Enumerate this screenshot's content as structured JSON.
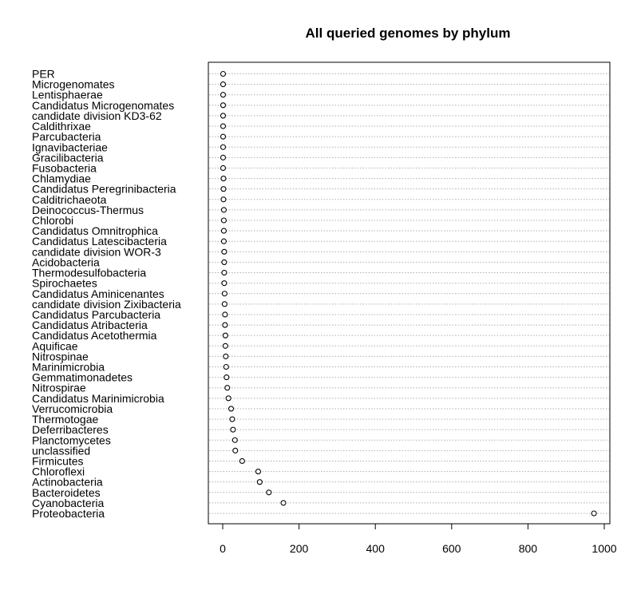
{
  "chart_data": {
    "type": "dot",
    "title": "All queried genomes by phylum",
    "xlabel": "",
    "ylabel": "",
    "xlim": [
      -40,
      1010
    ],
    "xticks": [
      0,
      200,
      400,
      600,
      800,
      1000
    ],
    "grid": "horizontal dotted",
    "categories": [
      "PER",
      "Microgenomates",
      "Lentisphaerae",
      "Candidatus Microgenomates",
      "candidate division KD3-62",
      "Caldithrixae",
      "Parcubacteria",
      "Ignavibacteriae",
      "Gracilibacteria",
      "Fusobacteria",
      "Chlamydiae",
      "Candidatus Peregrinibacteria",
      "Calditrichaeota",
      "Deinococcus-Thermus",
      "Chlorobi",
      "Candidatus Omnitrophica",
      "Candidatus Latescibacteria",
      "candidate division WOR-3",
      "Acidobacteria",
      "Thermodesulfobacteria",
      "Spirochaetes",
      "Candidatus Aminicenantes",
      "candidate division Zixibacteria",
      "Candidatus Parcubacteria",
      "Candidatus Atribacteria",
      "Candidatus Acetothermia",
      "Aquificae",
      "Nitrospinae",
      "Marinimicrobia",
      "Gemmatimonadetes",
      "Nitrospirae",
      "Candidatus Marinimicrobia",
      "Verrucomicrobia",
      "Thermotogae",
      "Deferribacteres",
      "Planctomycetes",
      "unclassified",
      "Firmicutes",
      "Chloroflexi",
      "Actinobacteria",
      "Bacteroidetes",
      "Cyanobacteria",
      "Proteobacteria"
    ],
    "values": [
      1,
      1,
      1,
      1,
      1,
      1,
      1,
      1,
      1,
      1,
      2,
      2,
      2,
      3,
      3,
      3,
      3,
      4,
      4,
      4,
      4,
      5,
      5,
      6,
      6,
      7,
      7,
      8,
      9,
      10,
      12,
      15,
      22,
      25,
      27,
      32,
      33,
      51,
      93,
      97,
      121,
      159,
      973
    ]
  }
}
